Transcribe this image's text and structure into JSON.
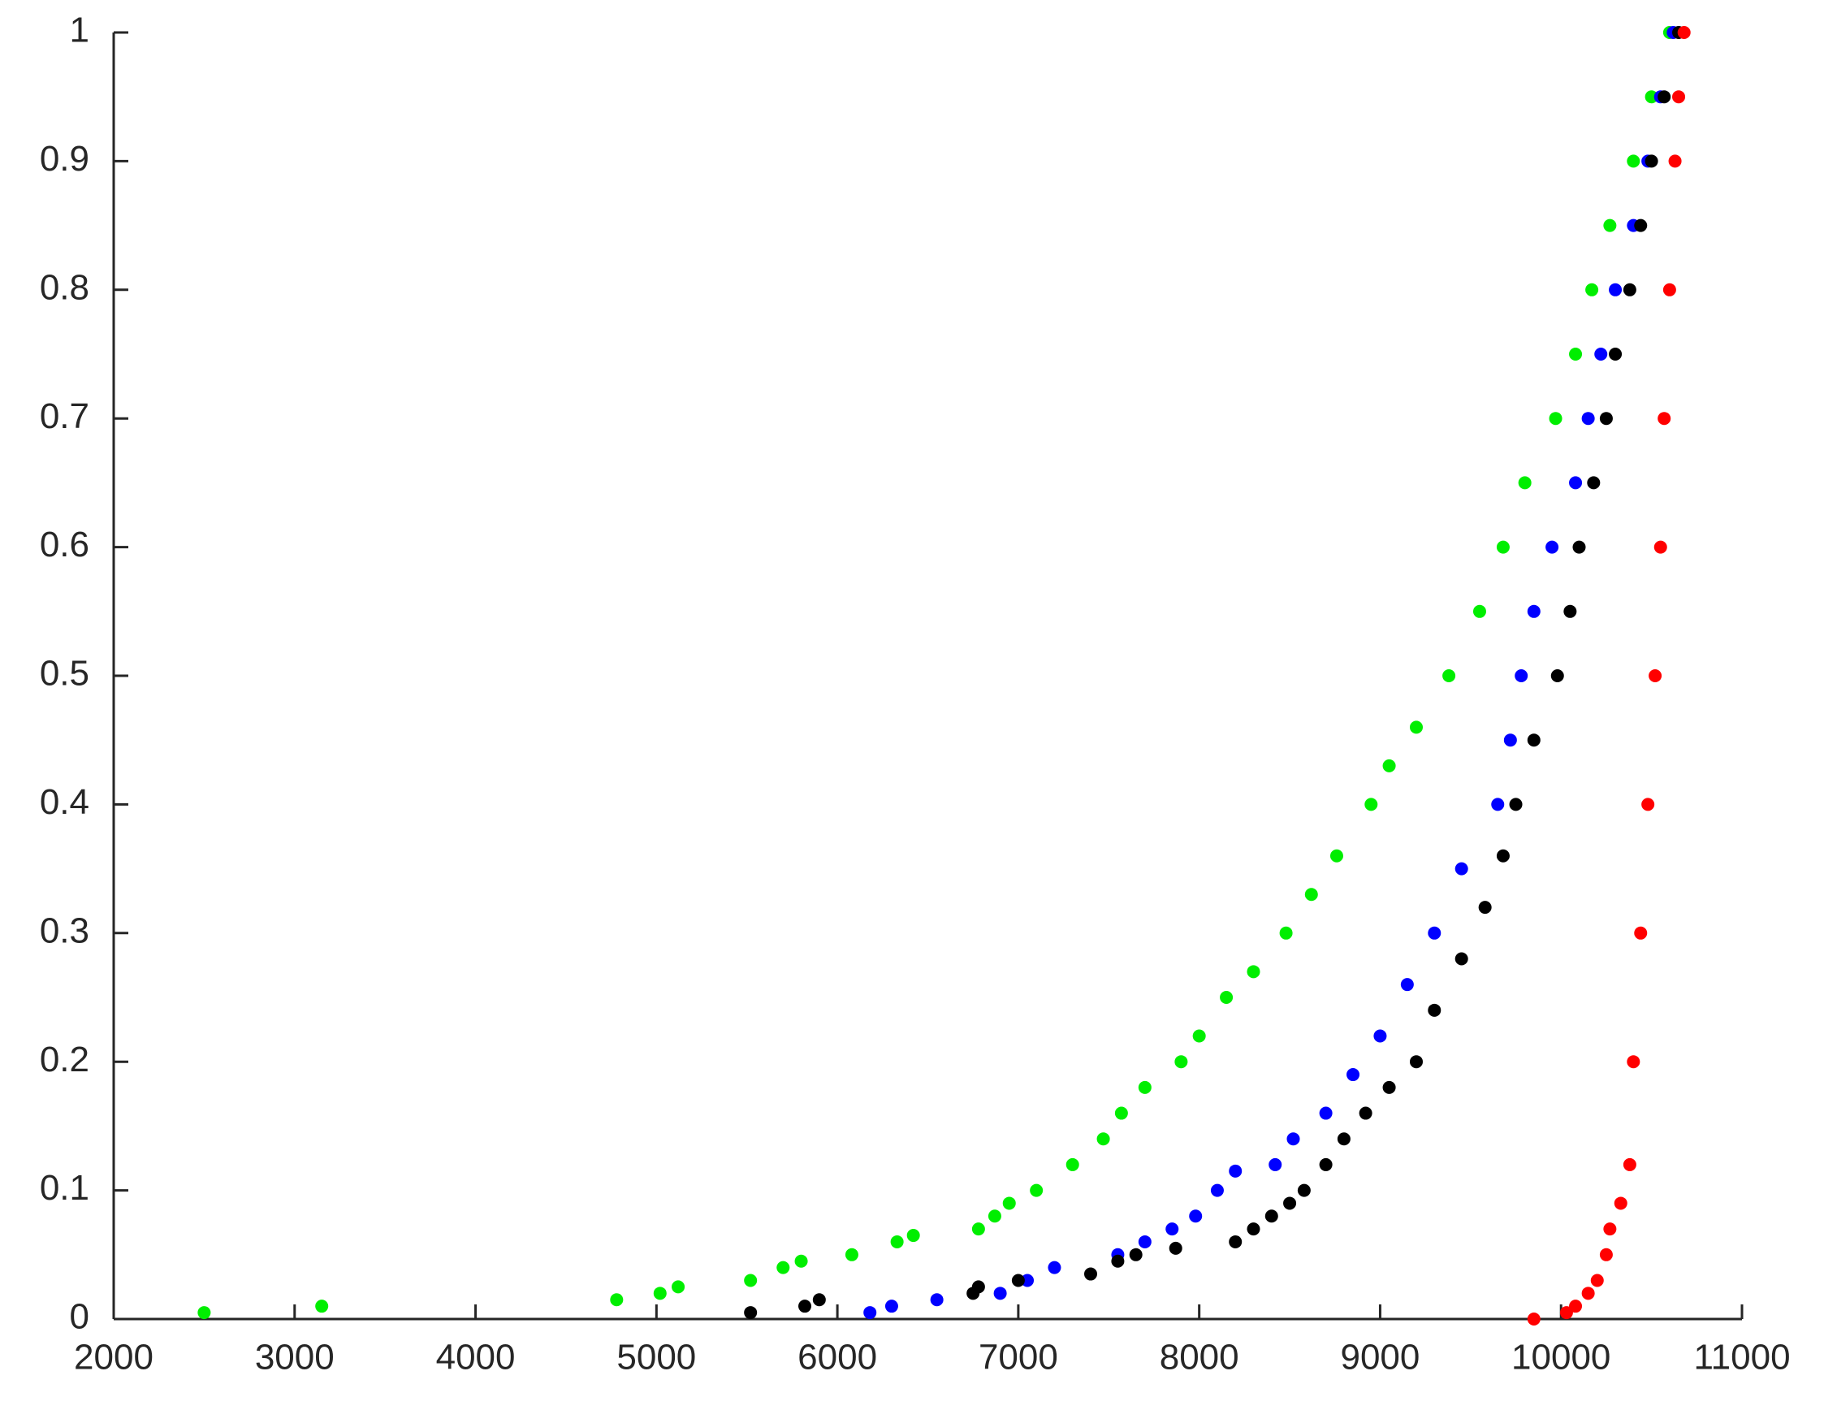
{
  "chart_data": {
    "type": "scatter",
    "xlim": [
      2000,
      11000
    ],
    "xticks": [
      2000,
      3000,
      4000,
      5000,
      6000,
      7000,
      8000,
      9000,
      10000,
      11000
    ],
    "ylim": [
      0,
      1
    ],
    "yticks": [
      0,
      0.1,
      0.2,
      0.3,
      0.4,
      0.5,
      0.6,
      0.7,
      0.8,
      0.9,
      1
    ],
    "series": [
      {
        "color": "#00ee00",
        "x": [
          2500,
          3150,
          4780,
          5020,
          5120,
          5520,
          5700,
          5800,
          6080,
          6330,
          6420,
          6780,
          6870,
          6950,
          7100,
          7300,
          7470,
          7570,
          7700,
          7900,
          8000,
          8150,
          8300,
          8480,
          8620,
          8760,
          8950,
          9050,
          9200,
          9380,
          9550,
          9680,
          9800,
          9970,
          10080,
          10170,
          10270,
          10400,
          10500,
          10600
        ],
        "values": [
          0.005,
          0.01,
          0.015,
          0.02,
          0.025,
          0.03,
          0.04,
          0.045,
          0.05,
          0.06,
          0.065,
          0.07,
          0.08,
          0.09,
          0.1,
          0.12,
          0.14,
          0.16,
          0.18,
          0.2,
          0.22,
          0.25,
          0.27,
          0.3,
          0.33,
          0.36,
          0.4,
          0.43,
          0.46,
          0.5,
          0.55,
          0.6,
          0.65,
          0.7,
          0.75,
          0.8,
          0.85,
          0.9,
          0.95,
          1.0
        ]
      },
      {
        "color": "#0000ff",
        "x": [
          6180,
          6300,
          6550,
          6900,
          7050,
          7200,
          7550,
          7700,
          7850,
          7980,
          8100,
          8200,
          8420,
          8520,
          8700,
          8850,
          9000,
          9150,
          9300,
          9450,
          9650,
          9720,
          9780,
          9850,
          9950,
          10080,
          10150,
          10220,
          10300,
          10400,
          10480,
          10550,
          10620
        ],
        "values": [
          0.005,
          0.01,
          0.015,
          0.02,
          0.03,
          0.04,
          0.05,
          0.06,
          0.07,
          0.08,
          0.1,
          0.115,
          0.12,
          0.14,
          0.16,
          0.19,
          0.22,
          0.26,
          0.3,
          0.35,
          0.4,
          0.45,
          0.5,
          0.55,
          0.6,
          0.65,
          0.7,
          0.75,
          0.8,
          0.85,
          0.9,
          0.95,
          1.0
        ]
      },
      {
        "color": "#000000",
        "x": [
          5520,
          5820,
          5900,
          6750,
          6780,
          7000,
          7400,
          7550,
          7650,
          7870,
          8200,
          8300,
          8400,
          8500,
          8580,
          8700,
          8800,
          8920,
          9050,
          9200,
          9300,
          9450,
          9580,
          9680,
          9750,
          9850,
          9980,
          10050,
          10100,
          10180,
          10250,
          10300,
          10380,
          10440,
          10500,
          10570,
          10650
        ],
        "values": [
          0.005,
          0.01,
          0.015,
          0.02,
          0.025,
          0.03,
          0.035,
          0.045,
          0.05,
          0.055,
          0.06,
          0.07,
          0.08,
          0.09,
          0.1,
          0.12,
          0.14,
          0.16,
          0.18,
          0.2,
          0.24,
          0.28,
          0.32,
          0.36,
          0.4,
          0.45,
          0.5,
          0.55,
          0.6,
          0.65,
          0.7,
          0.75,
          0.8,
          0.85,
          0.9,
          0.95,
          1.0
        ]
      },
      {
        "color": "#ff0000",
        "x": [
          9850,
          10030,
          10080,
          10150,
          10200,
          10250,
          10270,
          10330,
          10380,
          10400,
          10440,
          10480,
          10520,
          10550,
          10570,
          10600,
          10630,
          10650,
          10680
        ],
        "values": [
          0,
          0.005,
          0.01,
          0.02,
          0.03,
          0.05,
          0.07,
          0.09,
          0.12,
          0.2,
          0.3,
          0.4,
          0.5,
          0.6,
          0.7,
          0.8,
          0.9,
          0.95,
          1.0
        ]
      }
    ]
  }
}
